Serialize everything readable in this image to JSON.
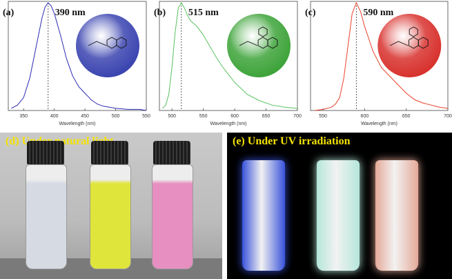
{
  "chart_data": [
    {
      "type": "line",
      "panel_label": "(a)",
      "peak_label": "390 nm",
      "xlabel": "Wavelength (nm)",
      "xlim": [
        325,
        550
      ],
      "x_ticks": [
        "350",
        "400",
        "450",
        "500",
        "550"
      ],
      "peak_x": 390,
      "color": "#2b2bb3",
      "molecule_color": "#3b45b0",
      "series": [
        {
          "x": [
            330,
            340,
            350,
            360,
            370,
            380,
            385,
            390,
            395,
            400,
            410,
            420,
            430,
            440,
            450,
            455,
            460,
            470,
            480,
            490,
            500,
            520,
            540,
            550
          ],
          "y": [
            0.02,
            0.05,
            0.12,
            0.3,
            0.58,
            0.86,
            0.96,
            1.0,
            0.97,
            0.9,
            0.7,
            0.48,
            0.32,
            0.22,
            0.16,
            0.13,
            0.1,
            0.06,
            0.04,
            0.03,
            0.02,
            0.01,
            0.01,
            0.0
          ]
        }
      ]
    },
    {
      "type": "line",
      "panel_label": "(b)",
      "peak_label": "515 nm",
      "xlabel": "Wavelength (nm)",
      "xlim": [
        480,
        700
      ],
      "x_ticks": [
        "500",
        "550",
        "600",
        "650",
        "700"
      ],
      "peak_x": 515,
      "color": "#58c25e",
      "molecule_color": "#3ea43a",
      "series": [
        {
          "x": [
            485,
            490,
            495,
            500,
            505,
            510,
            515,
            520,
            525,
            530,
            540,
            550,
            560,
            570,
            580,
            600,
            620,
            640,
            660,
            680,
            700
          ],
          "y": [
            0.02,
            0.05,
            0.15,
            0.4,
            0.72,
            0.95,
            1.0,
            0.95,
            0.88,
            0.83,
            0.78,
            0.7,
            0.6,
            0.5,
            0.41,
            0.26,
            0.15,
            0.09,
            0.05,
            0.03,
            0.02
          ]
        }
      ]
    },
    {
      "type": "line",
      "panel_label": "(c)",
      "peak_label": "590 nm",
      "xlabel": "Wavelength (nm)",
      "xlim": [
        535,
        700
      ],
      "x_ticks": [
        "550",
        "600",
        "650",
        "700"
      ],
      "peak_x": 590,
      "color": "#e8412a",
      "molecule_color": "#d8322e",
      "series": [
        {
          "x": [
            540,
            550,
            560,
            565,
            570,
            575,
            580,
            585,
            590,
            595,
            600,
            610,
            620,
            630,
            640,
            650,
            660,
            670,
            680,
            690,
            700
          ],
          "y": [
            0.0,
            0.01,
            0.03,
            0.06,
            0.12,
            0.3,
            0.6,
            0.9,
            1.0,
            0.92,
            0.78,
            0.55,
            0.4,
            0.32,
            0.24,
            0.16,
            0.1,
            0.07,
            0.05,
            0.03,
            0.02
          ]
        }
      ]
    }
  ],
  "photos": {
    "natural": {
      "label": "(d) Under natural light",
      "vial_colors": [
        "#d6dbe3",
        "#dfe53a",
        "#e78fc0"
      ]
    },
    "uv": {
      "label": "(e) Under UV irradiation",
      "vial_colors": [
        "#3c57e6",
        "#bff3e6",
        "#f2b3a1"
      ]
    }
  }
}
